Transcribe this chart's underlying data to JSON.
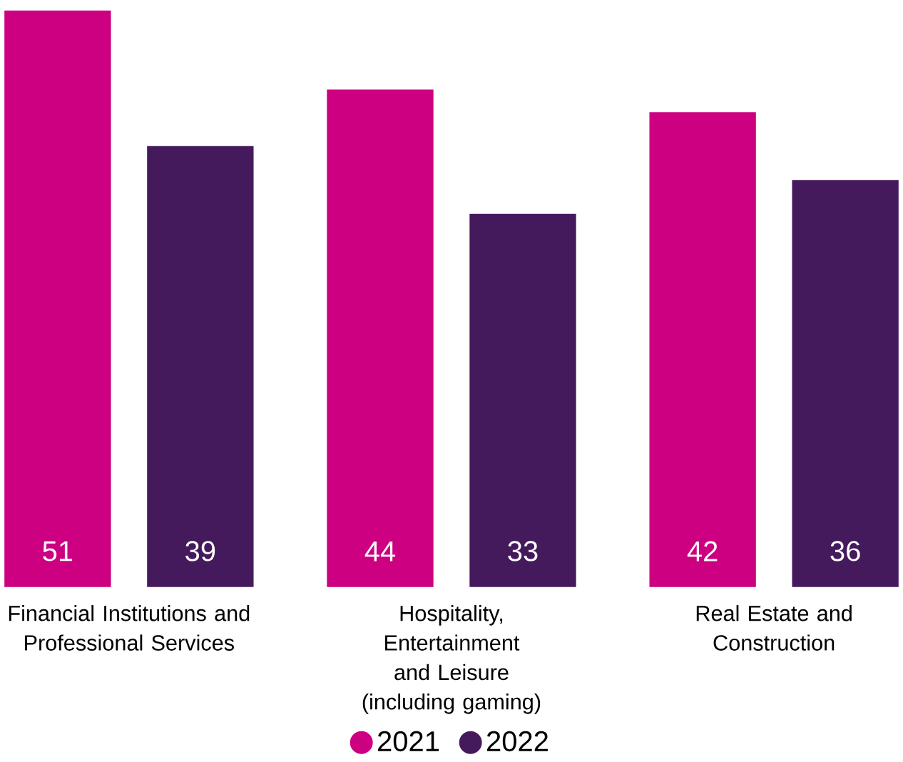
{
  "chart_data": {
    "type": "bar",
    "categories": [
      "Financial Institutions and Professional Services",
      "Hospitality, Entertainment and Leisure (including gaming)",
      "Real Estate and Construction"
    ],
    "series": [
      {
        "name": "2021",
        "color": "#cc0080",
        "values": [
          51,
          44,
          42
        ]
      },
      {
        "name": "2022",
        "color": "#451a5c",
        "values": [
          39,
          33,
          36
        ]
      }
    ],
    "data_labels": true,
    "legend": "bottom"
  }
}
